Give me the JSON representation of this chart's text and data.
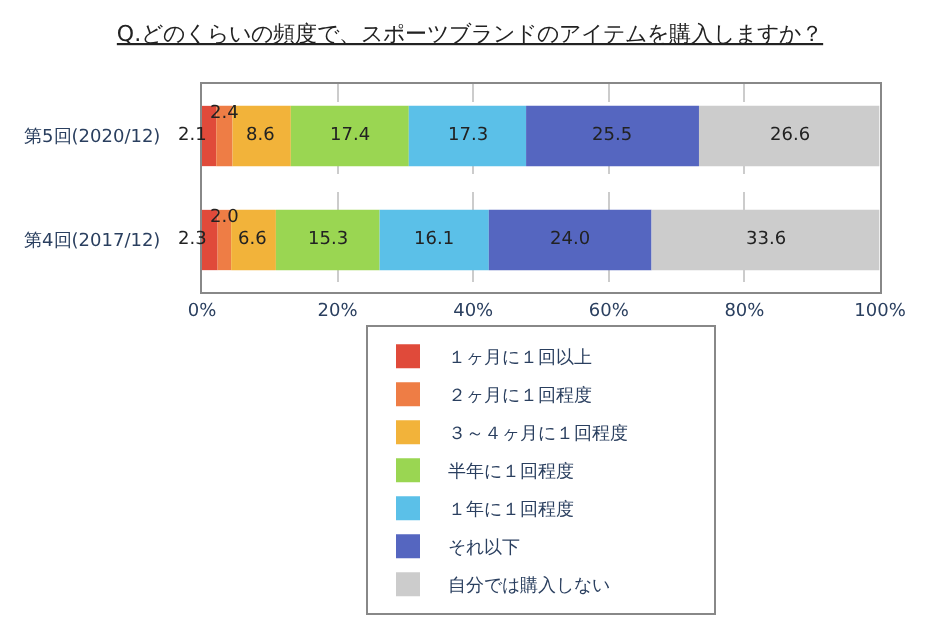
{
  "chart_data": {
    "type": "bar",
    "orientation": "horizontal",
    "stacked": true,
    "title": "Q.どのくらいの頻度で、スポーツブランドのアイテムを購入しますか？",
    "categories": [
      "第5回(2020/12)",
      "第4回(2017/12)"
    ],
    "series": [
      {
        "name": "１ヶ月に１回以上",
        "color": "#e04a3a",
        "values": [
          2.1,
          2.3
        ],
        "value_labels": [
          "2.1",
          "2.3"
        ]
      },
      {
        "name": "２ヶ月に１回程度",
        "color": "#ee7d45",
        "values": [
          2.4,
          2.0
        ],
        "value_labels": [
          "2.4",
          "2.0"
        ]
      },
      {
        "name": "３～４ヶ月に１回程度",
        "color": "#f2b33a",
        "values": [
          8.6,
          6.6
        ],
        "value_labels": [
          "8.6",
          "6.6"
        ]
      },
      {
        "name": "半年に１回程度",
        "color": "#9ad652",
        "values": [
          17.4,
          15.3
        ],
        "value_labels": [
          "17.4",
          "15.3"
        ]
      },
      {
        "name": "１年に１回程度",
        "color": "#5bc0e8",
        "values": [
          17.3,
          16.1
        ],
        "value_labels": [
          "17.3",
          "16.1"
        ]
      },
      {
        "name": "それ以下",
        "color": "#5566c0",
        "values": [
          25.5,
          24.0
        ],
        "value_labels": [
          "25.5",
          "24.0"
        ]
      },
      {
        "name": "自分では購入しない",
        "color": "#cccccc",
        "values": [
          26.6,
          33.6
        ],
        "value_labels": [
          "26.6",
          "33.6"
        ]
      }
    ],
    "xlim": [
      0,
      100
    ],
    "xticks": [
      {
        "value": 0,
        "label": "0%"
      },
      {
        "value": 20,
        "label": "20%"
      },
      {
        "value": 40,
        "label": "40%"
      },
      {
        "value": 60,
        "label": "60%"
      },
      {
        "value": 80,
        "label": "80%"
      },
      {
        "value": 100,
        "label": "100%"
      }
    ],
    "grid": "x",
    "legend": "bottom"
  }
}
